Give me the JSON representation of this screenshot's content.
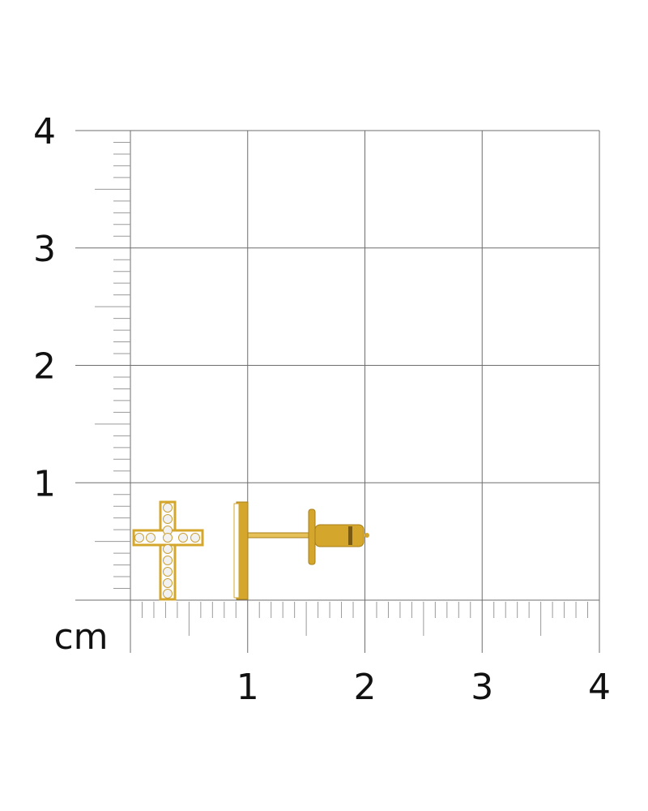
{
  "scale": {
    "unit": "cm",
    "y_labels": [
      "1",
      "2",
      "3",
      "4"
    ],
    "x_labels": [
      "1",
      "2",
      "3",
      "4"
    ],
    "grid_range_cm": [
      0,
      4
    ]
  },
  "product": {
    "subject": "cross-stud-earring",
    "views": [
      "front-view",
      "side-view"
    ],
    "metal_color": "#d4a72c",
    "stone_color": "#f2f2f2"
  },
  "colors": {
    "grid_line": "#6e6e6e",
    "tick": "#9a9a9a",
    "label": "#111111"
  }
}
